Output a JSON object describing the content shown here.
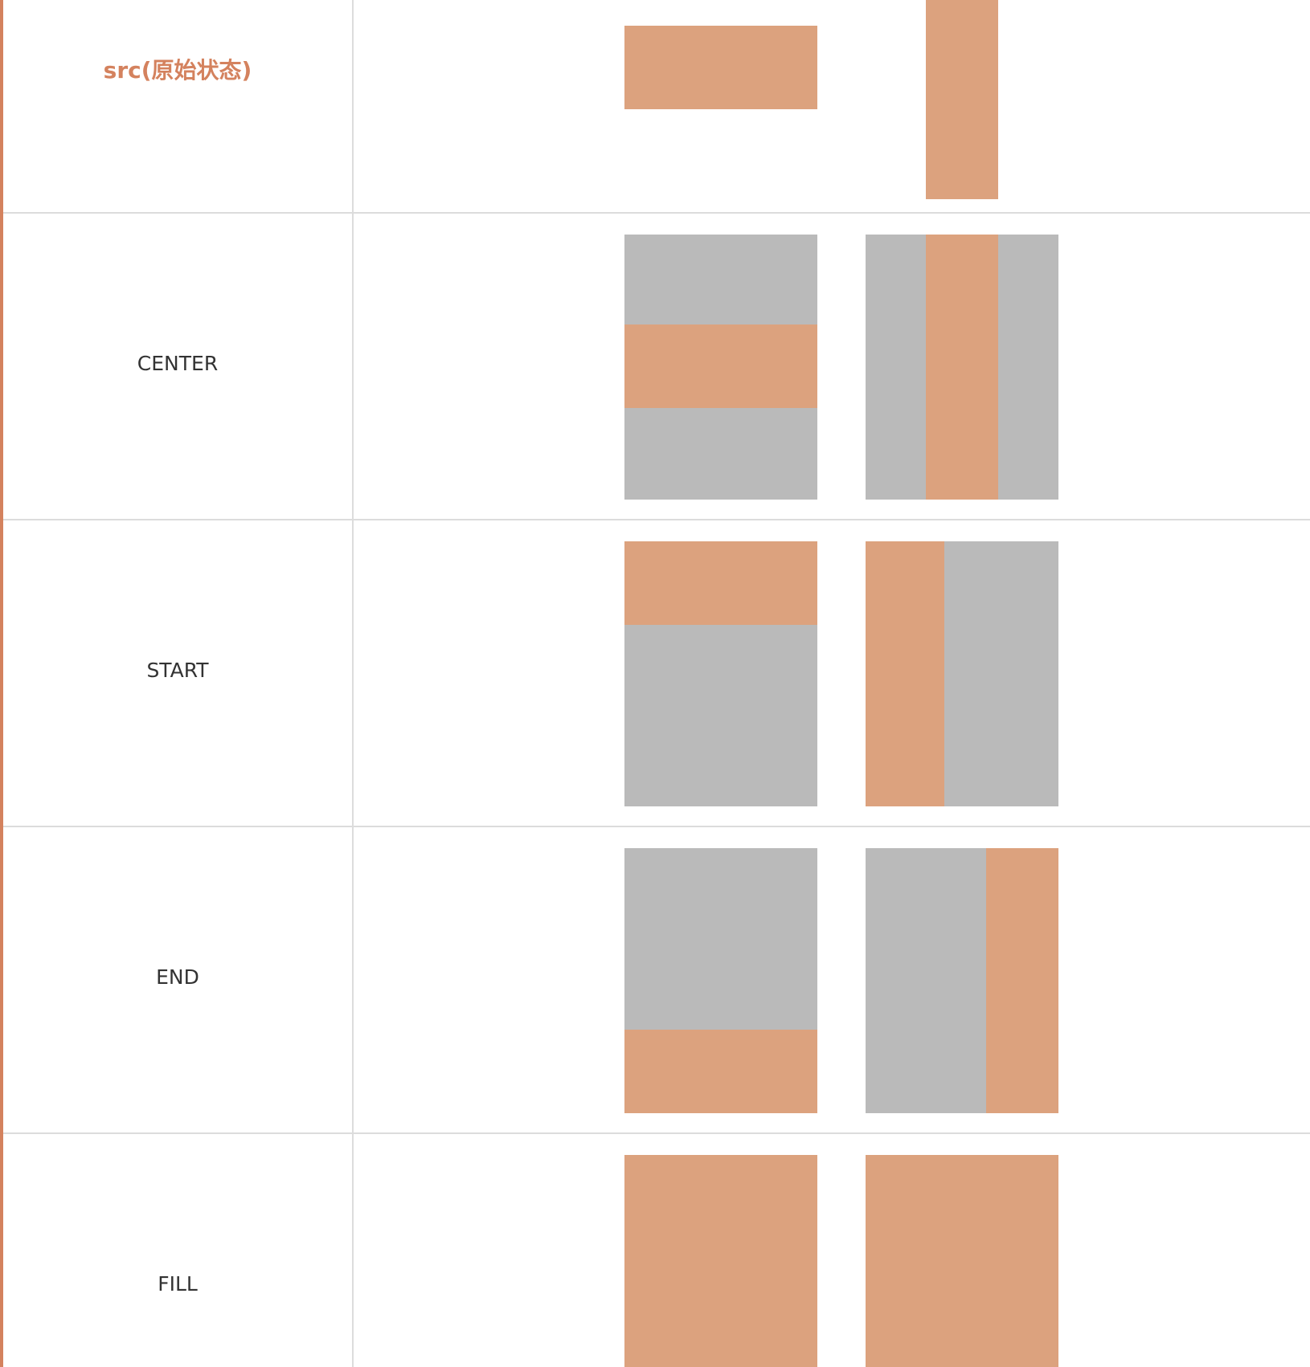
{
  "colors": {
    "accent": "#d4825e",
    "image": "#dca27e",
    "background_fill": "#bababa",
    "label_text": "#333333",
    "src_text": "#d4825e",
    "divider": "#dcdcdc"
  },
  "rows": [
    {
      "label": "src(原始状态)",
      "name": "src"
    },
    {
      "label": "CENTER",
      "name": "center"
    },
    {
      "label": "START",
      "name": "start"
    },
    {
      "label": "END",
      "name": "end"
    },
    {
      "label": "FILL",
      "name": "fill"
    }
  ]
}
